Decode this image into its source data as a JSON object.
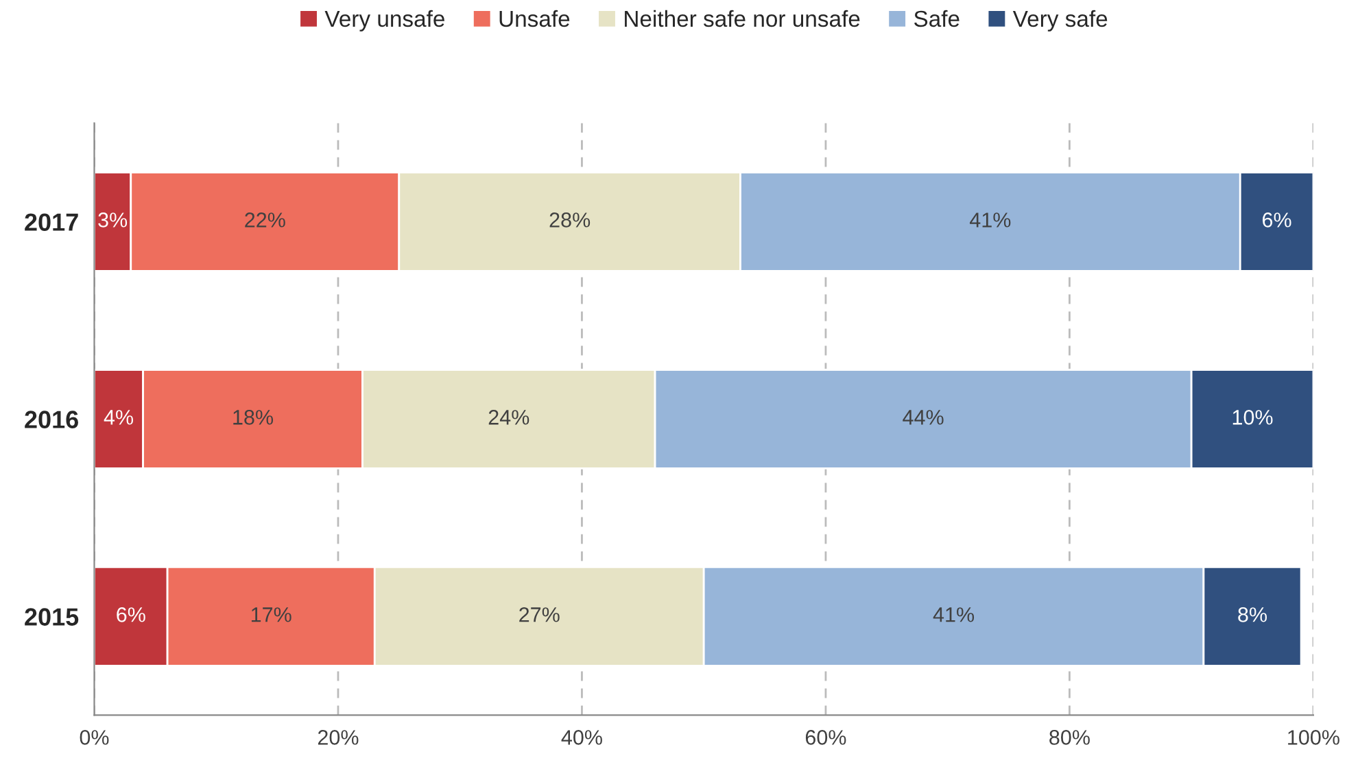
{
  "chart_data": {
    "type": "bar",
    "orientation": "horizontal",
    "stacked": true,
    "categories": [
      "2017",
      "2016",
      "2015"
    ],
    "series": [
      {
        "name": "Very unsafe",
        "color": "#c0363b",
        "values": [
          3,
          4,
          6
        ],
        "value_labels": [
          "3%",
          "4%",
          "6%"
        ]
      },
      {
        "name": "Unsafe",
        "color": "#ee6e5d",
        "values": [
          22,
          18,
          17
        ],
        "value_labels": [
          "22%",
          "18%",
          "17%"
        ]
      },
      {
        "name": "Neither safe nor unsafe",
        "color": "#e6e3c5",
        "values": [
          28,
          24,
          27
        ],
        "value_labels": [
          "28%",
          "24%",
          "27%"
        ]
      },
      {
        "name": "Safe",
        "color": "#97b5d9",
        "values": [
          41,
          44,
          41
        ],
        "value_labels": [
          "41%",
          "44%",
          "41%"
        ]
      },
      {
        "name": "Very safe",
        "color": "#30507f",
        "values": [
          6,
          10,
          8
        ],
        "value_labels": [
          "6%",
          "10%",
          "8%"
        ]
      }
    ],
    "xlim": [
      0,
      100
    ],
    "xticks": [
      {
        "value": 0,
        "label": "0%"
      },
      {
        "value": 20,
        "label": "20%"
      },
      {
        "value": 40,
        "label": "40%"
      },
      {
        "value": 60,
        "label": "60%"
      },
      {
        "value": 80,
        "label": "80%"
      },
      {
        "value": 100,
        "label": "100%"
      }
    ],
    "grid": "x",
    "legend": "top"
  }
}
